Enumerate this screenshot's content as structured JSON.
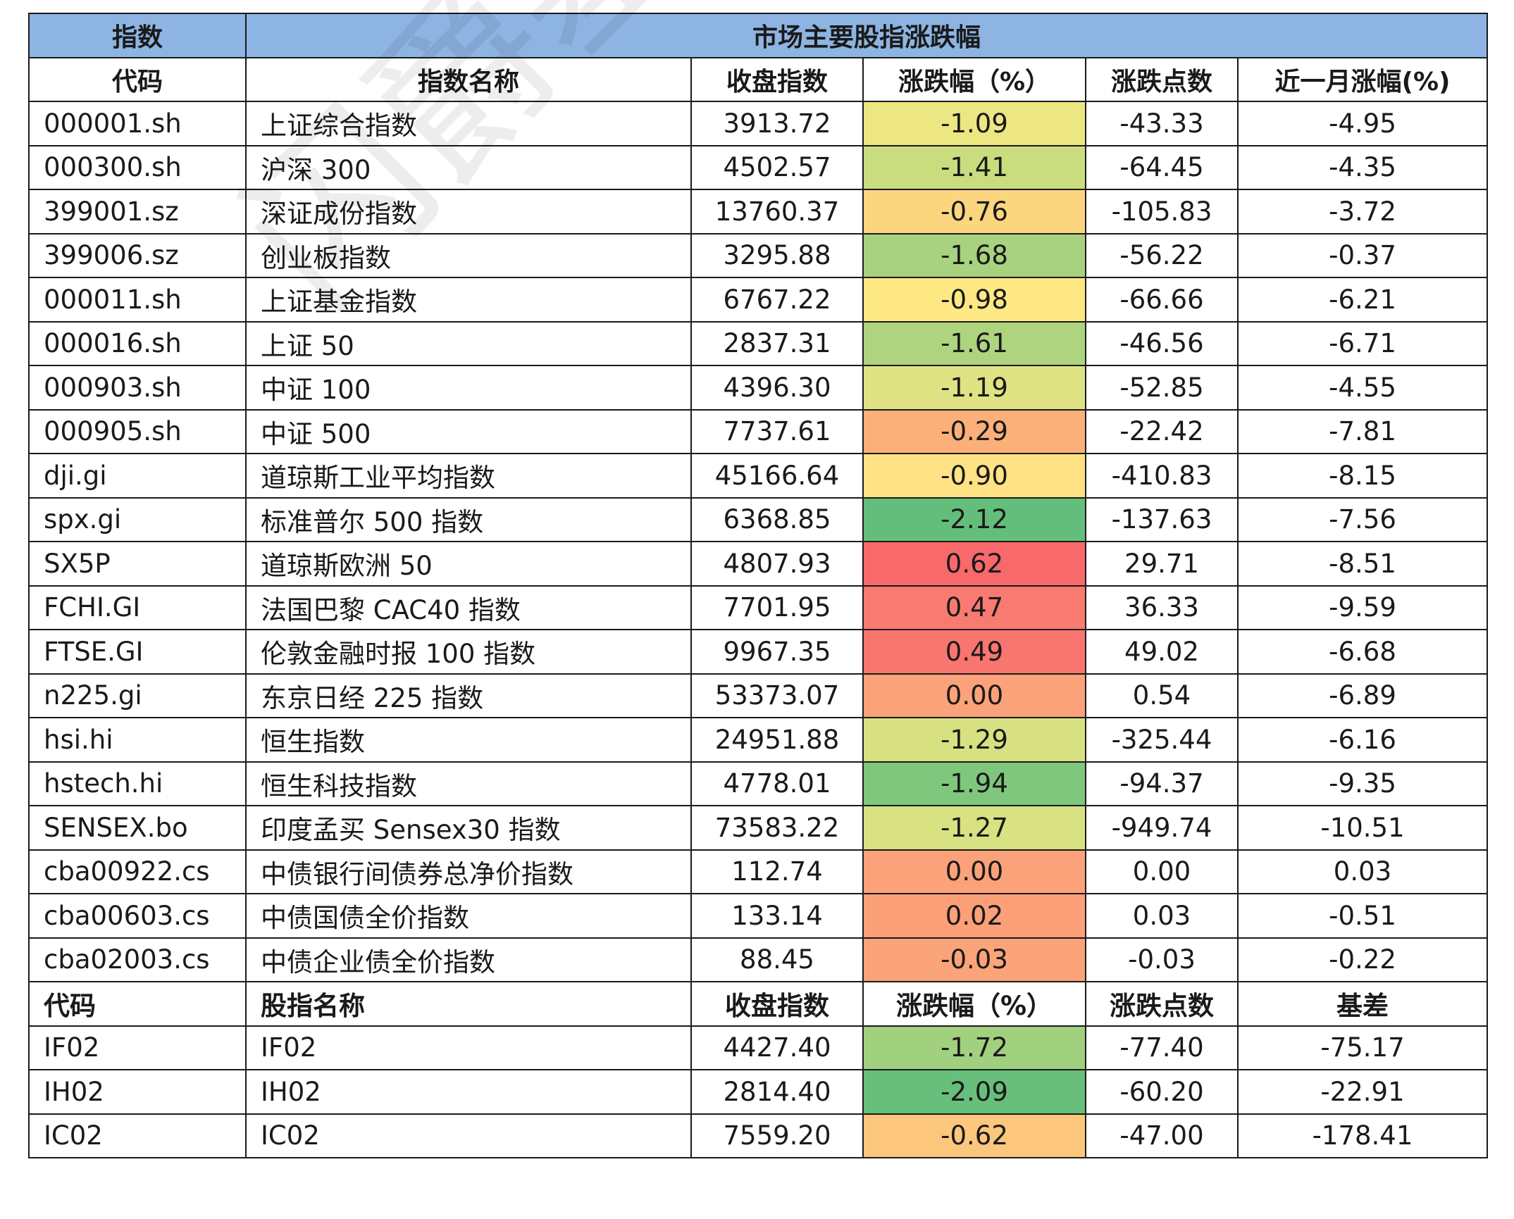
{
  "header": {
    "left": "指数",
    "right": "市场主要股指涨跌幅"
  },
  "columns1": [
    "代码",
    "指数名称",
    "收盘指数",
    "涨跌幅（%）",
    "涨跌点数",
    "近一月涨幅(%)"
  ],
  "rows1": [
    {
      "code": "000001.sh",
      "name": "上证综合指数",
      "close": "3913.72",
      "pct": "-1.09",
      "pts": "-43.33",
      "month": "-4.95",
      "color": "#ede783"
    },
    {
      "code": "000300.sh",
      "name": "沪深 300",
      "close": "4502.57",
      "pct": "-1.41",
      "pts": "-64.45",
      "month": "-4.35",
      "color": "#c9dd7f"
    },
    {
      "code": "399001.sz",
      "name": "深证成份指数",
      "close": "13760.37",
      "pct": "-0.76",
      "pts": "-105.83",
      "month": "-3.72",
      "color": "#fcd67f"
    },
    {
      "code": "399006.sz",
      "name": "创业板指数",
      "close": "3295.88",
      "pct": "-1.68",
      "pts": "-56.22",
      "month": "-0.37",
      "color": "#a8d27f"
    },
    {
      "code": "000011.sh",
      "name": "上证基金指数",
      "close": "6767.22",
      "pct": "-0.98",
      "pts": "-66.66",
      "month": "-6.21",
      "color": "#fde884"
    },
    {
      "code": "000016.sh",
      "name": "上证 50",
      "close": "2837.31",
      "pct": "-1.61",
      "pts": "-46.56",
      "month": "-6.71",
      "color": "#afd47f"
    },
    {
      "code": "000903.sh",
      "name": "中证 100",
      "close": "4396.30",
      "pct": "-1.19",
      "pts": "-52.85",
      "month": "-4.55",
      "color": "#dfe383"
    },
    {
      "code": "000905.sh",
      "name": "中证 500",
      "close": "7737.61",
      "pct": "-0.29",
      "pts": "-22.42",
      "month": "-7.81",
      "color": "#fbb079"
    },
    {
      "code": "dji.gi",
      "name": "道琼斯工业平均指数",
      "close": "45166.64",
      "pct": "-0.90",
      "pts": "-410.83",
      "month": "-8.15",
      "color": "#fee285"
    },
    {
      "code": "spx.gi",
      "name": "标准普尔 500 指数",
      "close": "6368.85",
      "pct": "-2.12",
      "pts": "-137.63",
      "month": "-7.56",
      "color": "#64be7b"
    },
    {
      "code": "SX5P",
      "name": "道琼斯欧洲 50",
      "close": "4807.93",
      "pct": "0.62",
      "pts": "29.71",
      "month": "-8.51",
      "color": "#f8696b"
    },
    {
      "code": "FCHI.GI",
      "name": "法国巴黎 CAC40 指数",
      "close": "7701.95",
      "pct": "0.47",
      "pts": "36.33",
      "month": "-9.59",
      "color": "#f97a71"
    },
    {
      "code": "FTSE.GI",
      "name": "伦敦金融时报 100 指数",
      "close": "9967.35",
      "pct": "0.49",
      "pts": "49.02",
      "month": "-6.68",
      "color": "#f8766f"
    },
    {
      "code": "n225.gi",
      "name": "东京日经 225 指数",
      "close": "53373.07",
      "pct": "0.00",
      "pts": "0.54",
      "month": "-6.89",
      "color": "#fba27a"
    },
    {
      "code": "hsi.hi",
      "name": "恒生指数",
      "close": "24951.88",
      "pct": "-1.29",
      "pts": "-325.44",
      "month": "-6.16",
      "color": "#d7e181"
    },
    {
      "code": "hstech.hi",
      "name": "恒生科技指数",
      "close": "4778.01",
      "pct": "-1.94",
      "pts": "-94.37",
      "month": "-9.35",
      "color": "#7fc77d"
    },
    {
      "code": "SENSEX.bo",
      "name": "印度孟买 Sensex30 指数",
      "close": "73583.22",
      "pct": "-1.27",
      "pts": "-949.74",
      "month": "-10.51",
      "color": "#d9e282"
    },
    {
      "code": "cba00922.cs",
      "name": "中债银行间债券总净价指数",
      "close": "112.74",
      "pct": "0.00",
      "pts": "0.00",
      "month": "0.03",
      "color": "#fba27a"
    },
    {
      "code": "cba00603.cs",
      "name": "中债国债全价指数",
      "close": "133.14",
      "pct": "0.02",
      "pts": "0.03",
      "month": "-0.51",
      "color": "#fba079"
    },
    {
      "code": "cba02003.cs",
      "name": "中债企业债全价指数",
      "close": "88.45",
      "pct": "-0.03",
      "pts": "-0.03",
      "month": "-0.22",
      "color": "#fba379"
    }
  ],
  "columns2": [
    "代码",
    "股指名称",
    "收盘指数",
    "涨跌幅（%）",
    "涨跌点数",
    "基差"
  ],
  "rows2": [
    {
      "code": "IF02",
      "name": "IF02",
      "close": "4427.40",
      "pct": "-1.72",
      "pts": "-77.40",
      "month": "-75.17",
      "color": "#a1d07f"
    },
    {
      "code": "IH02",
      "name": "IH02",
      "close": "2814.40",
      "pct": "-2.09",
      "pts": "-60.20",
      "month": "-22.91",
      "color": "#67bf7b"
    },
    {
      "code": "IC02",
      "name": "IC02",
      "close": "7559.20",
      "pct": "-0.62",
      "pts": "-47.00",
      "month": "-178.41",
      "color": "#fcc77d"
    }
  ]
}
